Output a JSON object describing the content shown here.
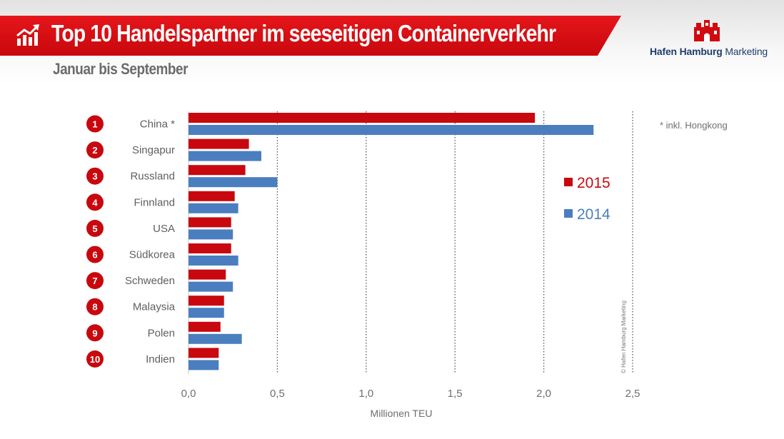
{
  "header": {
    "title": "Top 10 Handelspartner im seeseitigen Containerverkehr",
    "subtitle": "Januar bis September",
    "title_icon": "trend-chart-icon",
    "brand_color": "#d10a10"
  },
  "logo": {
    "name_bold": "Hafen Hamburg",
    "name_light": " Marketing",
    "icon": "hamburg-castle-icon"
  },
  "chart_data": {
    "type": "bar",
    "orientation": "horizontal",
    "categories": [
      "China *",
      "Singapur",
      "Russland",
      "Finnland",
      "USA",
      "Südkorea",
      "Schweden",
      "Malaysia",
      "Polen",
      "Indien"
    ],
    "ranks": [
      "1",
      "2",
      "3",
      "4",
      "5",
      "6",
      "7",
      "8",
      "9",
      "10"
    ],
    "series": [
      {
        "name": "2015",
        "color": "#c8080e",
        "values": [
          1.95,
          0.34,
          0.32,
          0.26,
          0.24,
          0.24,
          0.21,
          0.2,
          0.18,
          0.17
        ]
      },
      {
        "name": "2014",
        "color": "#4a7ebf",
        "values": [
          2.28,
          0.41,
          0.5,
          0.28,
          0.25,
          0.28,
          0.25,
          0.2,
          0.3,
          0.17
        ]
      }
    ],
    "xlabel": "Millionen TEU",
    "xlim": [
      0,
      2.5
    ],
    "xticks": [
      0,
      0.5,
      1,
      1.5,
      2,
      2.5
    ],
    "xtick_labels": [
      "0,0",
      "0,5",
      "1,0",
      "1,5",
      "2,0",
      "2,5"
    ],
    "grid": "vertical dotted",
    "legend_position": "right",
    "footnote": "*   inkl. Hongkong",
    "copyright": "© Hafen Hamburg Marketing"
  }
}
